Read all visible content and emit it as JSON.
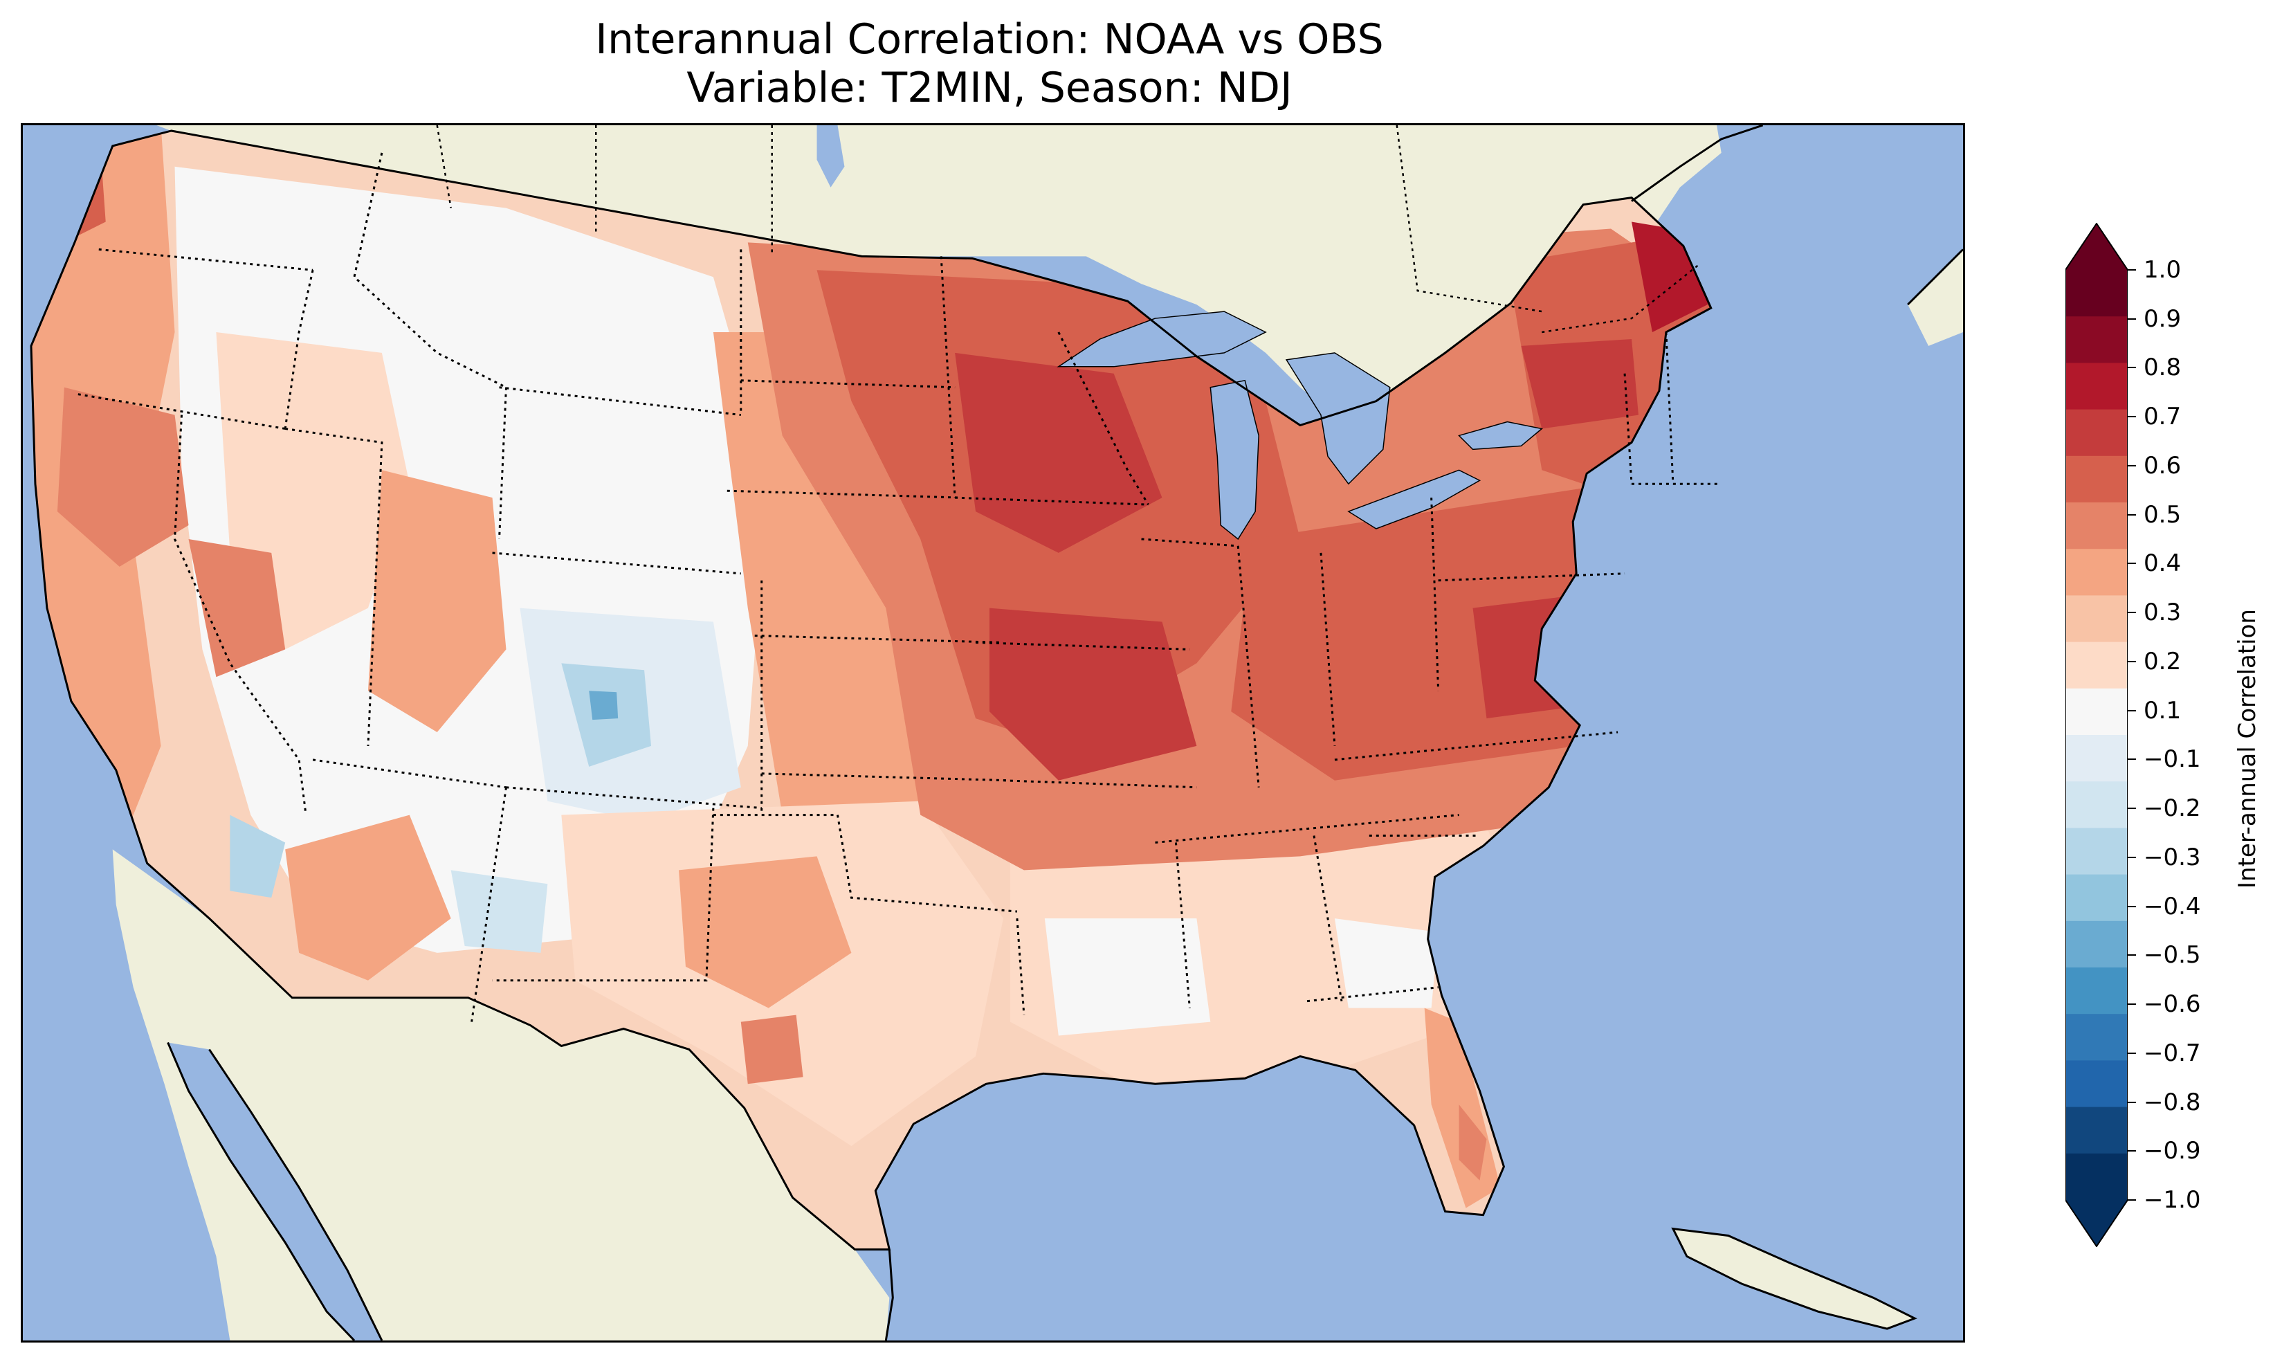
{
  "title": {
    "line1": "Interannual Correlation: NOAA vs OBS",
    "line2": "Variable: T2MIN, Season: NDJ"
  },
  "map": {
    "ocean_color": "#97b6e1",
    "land_color": "#efefdb",
    "lake_color": "#97b6e1"
  },
  "colorbar": {
    "label": "Inter-annual Correlation",
    "tick_labels": [
      "1.0",
      "0.9",
      "0.8",
      "0.7",
      "0.6",
      "0.5",
      "0.4",
      "0.3",
      "0.2",
      "0.1",
      "−0.1",
      "−0.2",
      "−0.3",
      "−0.4",
      "−0.5",
      "−0.6",
      "−0.7",
      "−0.8",
      "−0.9",
      "−1.0"
    ],
    "levels": [
      1.0,
      0.9,
      0.8,
      0.7,
      0.6,
      0.5,
      0.4,
      0.3,
      0.2,
      0.1,
      -0.1,
      -0.2,
      -0.3,
      -0.4,
      -0.5,
      -0.6,
      -0.7,
      -0.8,
      -0.9,
      -1.0
    ],
    "extend": "both",
    "colors": [
      "#67001f",
      "#8b0a25",
      "#b2182b",
      "#c43c3c",
      "#d6604d",
      "#e58368",
      "#f4a582",
      "#f8c3a6",
      "#fddbc7",
      "#f7f7f7",
      "#e2ecf4",
      "#d1e5f0",
      "#b4d6e8",
      "#92c5de",
      "#6aabd1",
      "#4393c3",
      "#3079b6",
      "#2166ac",
      "#11477e",
      "#053061"
    ]
  }
}
